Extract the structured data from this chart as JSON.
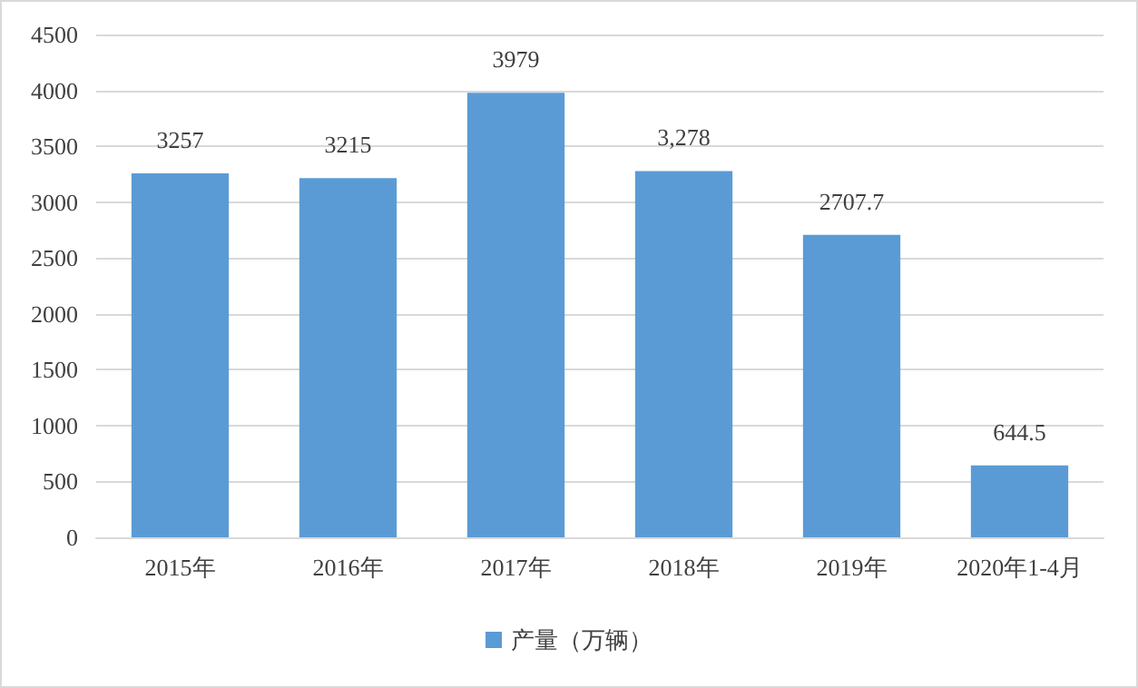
{
  "chart_data": {
    "type": "bar",
    "categories": [
      "2015年",
      "2016年",
      "2017年",
      "2018年",
      "2019年",
      "2020年1-4月"
    ],
    "series": [
      {
        "name": "产量（万辆）",
        "color": "#5b9bd5",
        "values": [
          3257,
          3215,
          3979,
          3278,
          2707.7,
          644.5
        ],
        "value_labels": [
          "3257",
          "3215",
          "3979",
          "3,278",
          "2707.7",
          "644.5"
        ]
      }
    ],
    "ylim": [
      0,
      4500
    ],
    "yticks": [
      0,
      500,
      1000,
      1500,
      2000,
      2500,
      3000,
      3500,
      4000,
      4500
    ],
    "grid": "y",
    "legend": "bottom"
  }
}
